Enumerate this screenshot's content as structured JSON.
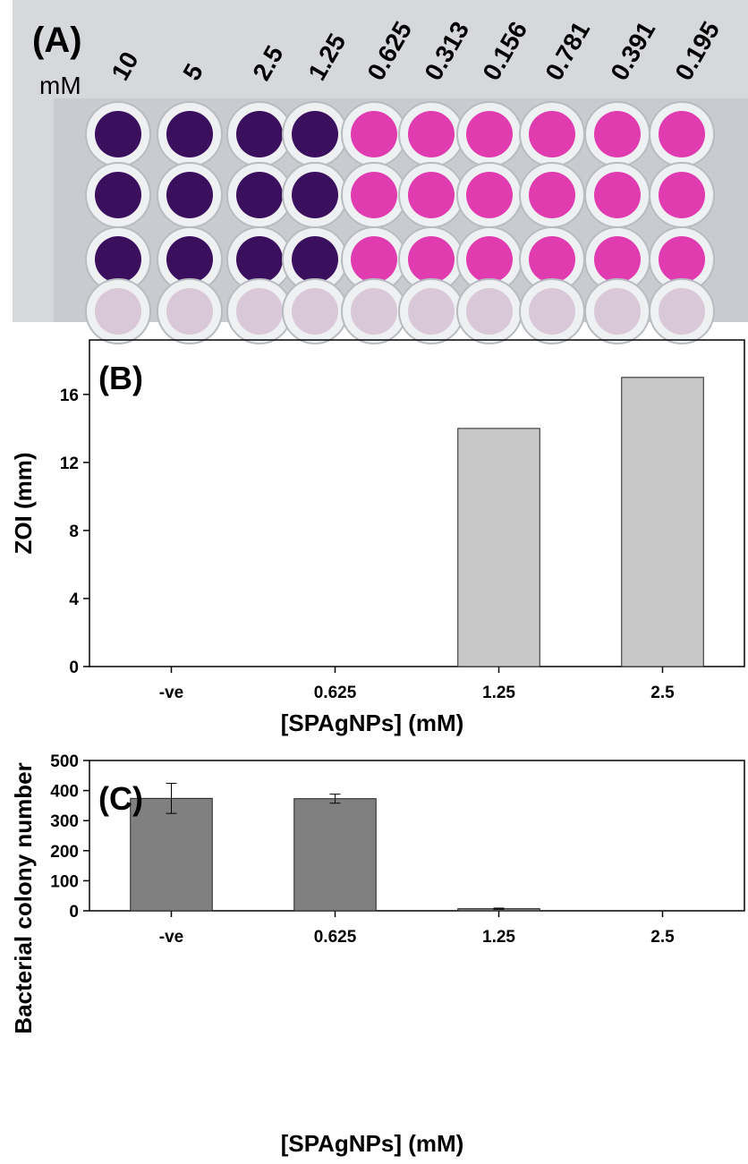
{
  "photo": {
    "label": "(A)",
    "unit": "mM",
    "concentrations": [
      "10",
      "5",
      "2.5",
      "1.25",
      "0.625",
      "0.313",
      "0.156",
      "0.781",
      "0.391",
      "0.195"
    ]
  },
  "chart_data": [
    {
      "type": "bar",
      "annotation": "(B)",
      "categories": [
        "-ve",
        "0.625",
        "1.25",
        "2.5"
      ],
      "values": [
        0,
        0,
        14,
        17
      ],
      "color": "#c8c8c8",
      "ylim": [
        0,
        19.2
      ],
      "yticks": [
        0,
        4,
        8,
        12,
        16
      ],
      "xlabel": "[SPAgNPs] (mM)",
      "ylabel": "ZOI (mm)"
    },
    {
      "type": "bar",
      "annotation": "(C)",
      "categories": [
        "-ve",
        "0.625",
        "1.25",
        "2.5"
      ],
      "values": [
        374,
        373,
        7,
        0
      ],
      "errors": [
        50,
        15,
        2,
        0
      ],
      "color": "#808080",
      "ylim": [
        0,
        500
      ],
      "yticks": [
        0,
        100,
        200,
        300,
        400,
        500
      ],
      "xlabel": "[SPAgNPs] (mM)",
      "ylabel": "Bacterial colony number"
    }
  ]
}
